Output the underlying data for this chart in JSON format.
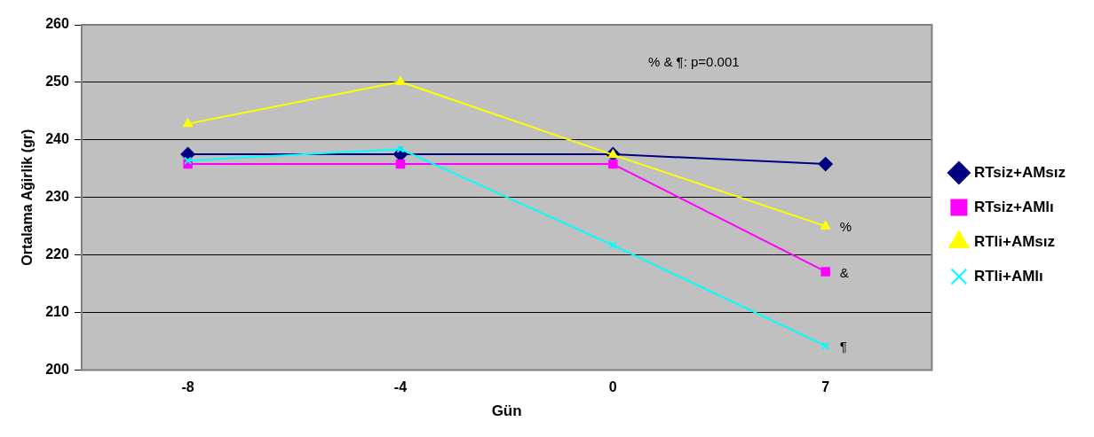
{
  "chart_data": {
    "type": "line",
    "xlabel": "Gün",
    "ylabel": "Ortalama Ağirlik (gr)",
    "categories": [
      "-8",
      "-4",
      "0",
      "7"
    ],
    "series": [
      {
        "name": "RTsiz+AMsız",
        "color": "#000080",
        "marker": "diamond",
        "values": [
          237.5,
          237.5,
          237.5,
          235.8
        ]
      },
      {
        "name": "RTsiz+AMlı",
        "color": "#ff00ff",
        "marker": "square",
        "values": [
          235.8,
          235.8,
          235.8,
          217.1
        ]
      },
      {
        "name": "RTli+AMsız",
        "color": "#ffff00",
        "marker": "triangle",
        "values": [
          242.8,
          250.1,
          237.4,
          225
        ]
      },
      {
        "name": "RTli+AMlı",
        "color": "#00ffff",
        "marker": "cross",
        "values": [
          236.4,
          238.4,
          221.7,
          204.2
        ]
      }
    ],
    "ylim": [
      200,
      260
    ],
    "yticks": [
      200,
      210,
      220,
      230,
      240,
      250,
      260
    ],
    "grid": "y",
    "legend": "right",
    "annotations": [
      "% & ¶: p=0.001",
      {
        "text": "%",
        "x": "7",
        "y": 225
      },
      {
        "text": "&",
        "x": "7",
        "y": 217.1
      },
      {
        "text": "¶",
        "x": "7",
        "y": 204.2
      }
    ]
  }
}
